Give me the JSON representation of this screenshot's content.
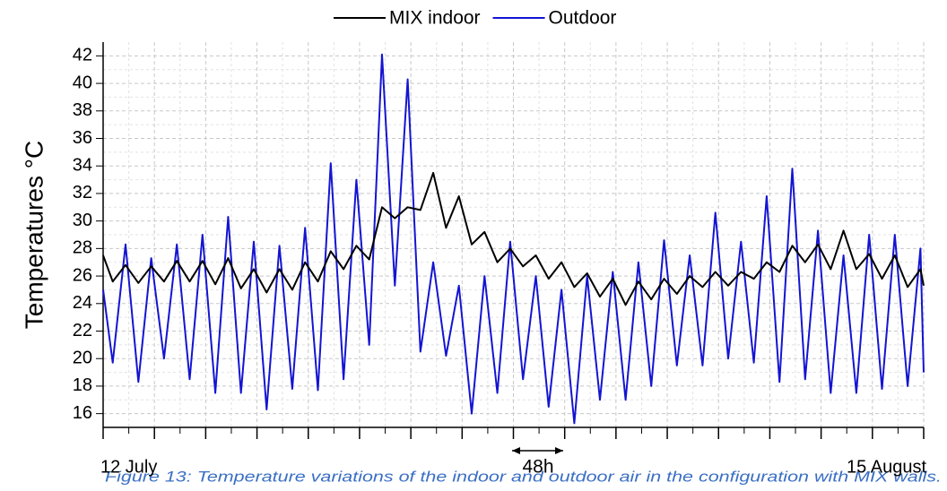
{
  "chart_data": {
    "type": "line",
    "y_label": "Temperatures °C",
    "caption": "Figure 13: Temperature variations of the indoor and outdoor air in the configuration with MIX walls.",
    "annotation": "48h",
    "legend": "top",
    "grid": true,
    "ylim": [
      15,
      43
    ],
    "yticks": [
      16,
      18,
      20,
      22,
      24,
      26,
      28,
      30,
      32,
      34,
      36,
      38,
      40,
      42
    ],
    "xlim": [
      0,
      32
    ],
    "xticks": [
      {
        "value": 0,
        "label": "12 July"
      },
      {
        "value": 2
      },
      {
        "value": 4
      },
      {
        "value": 6
      },
      {
        "value": 8
      },
      {
        "value": 10
      },
      {
        "value": 12
      },
      {
        "value": 14
      },
      {
        "value": 16
      },
      {
        "value": 18
      },
      {
        "value": 20
      },
      {
        "value": 22
      },
      {
        "value": 24
      },
      {
        "value": 26
      },
      {
        "value": 28
      },
      {
        "value": 30
      },
      {
        "value": 32,
        "label": "15 August"
      }
    ],
    "x": [
      0,
      0.375,
      0.875,
      1.375,
      1.875,
      2.375,
      2.875,
      3.375,
      3.875,
      4.375,
      4.875,
      5.375,
      5.875,
      6.375,
      6.875,
      7.375,
      7.875,
      8.375,
      8.875,
      9.375,
      9.875,
      10.375,
      10.875,
      11.375,
      11.875,
      12.375,
      12.875,
      13.375,
      13.875,
      14.375,
      14.875,
      15.375,
      15.875,
      16.375,
      16.875,
      17.375,
      17.875,
      18.375,
      18.875,
      19.375,
      19.875,
      20.375,
      20.875,
      21.375,
      21.875,
      22.375,
      22.875,
      23.375,
      23.875,
      24.375,
      24.875,
      25.375,
      25.875,
      26.375,
      26.875,
      27.375,
      27.875,
      28.375,
      28.875,
      29.375,
      29.875,
      30.375,
      30.875,
      31.375,
      31.875,
      32
    ],
    "series": [
      {
        "name": "Outdoor",
        "color": "#1414d2",
        "values": [
          25,
          19.7,
          28.3,
          18.3,
          27.3,
          20,
          28.3,
          18.5,
          29,
          17.5,
          30.3,
          17.5,
          28.5,
          16.3,
          28.2,
          17.8,
          29.5,
          17.7,
          34.2,
          18.5,
          33,
          21,
          42.1,
          25.3,
          40.3,
          20.5,
          27,
          20.2,
          25.3,
          16,
          26,
          17.5,
          28.5,
          18.5,
          26,
          16.5,
          25,
          15.3,
          26,
          17,
          26.3,
          17,
          27,
          18,
          28.6,
          19.5,
          27.5,
          19.5,
          30.6,
          20,
          28.5,
          19.7,
          31.8,
          18.3,
          33.8,
          18.5,
          29.3,
          17.5,
          27.5,
          17.5,
          29,
          17.8,
          29,
          18,
          28,
          19
        ]
      },
      {
        "name": "MIX indoor",
        "color": "#000000",
        "values": [
          27.5,
          25.6,
          26.8,
          25.5,
          26.7,
          25.6,
          27.1,
          25.6,
          27.1,
          25.4,
          27.3,
          25.1,
          26.5,
          24.8,
          26.5,
          25,
          27,
          25.6,
          27.8,
          26.5,
          28.2,
          27.2,
          31,
          30.2,
          31,
          30.8,
          33.5,
          29.5,
          31.8,
          28.3,
          29.2,
          27,
          28,
          26.7,
          27.5,
          25.8,
          27,
          25.2,
          26.2,
          24.5,
          25.8,
          23.9,
          25.6,
          24.3,
          25.8,
          24.7,
          26,
          25.2,
          26.3,
          25.3,
          26.3,
          25.8,
          27,
          26.3,
          28.2,
          27,
          28.3,
          26.5,
          29.3,
          26.5,
          27.6,
          25.8,
          27.5,
          25.2,
          26.5,
          25.3
        ]
      }
    ]
  }
}
